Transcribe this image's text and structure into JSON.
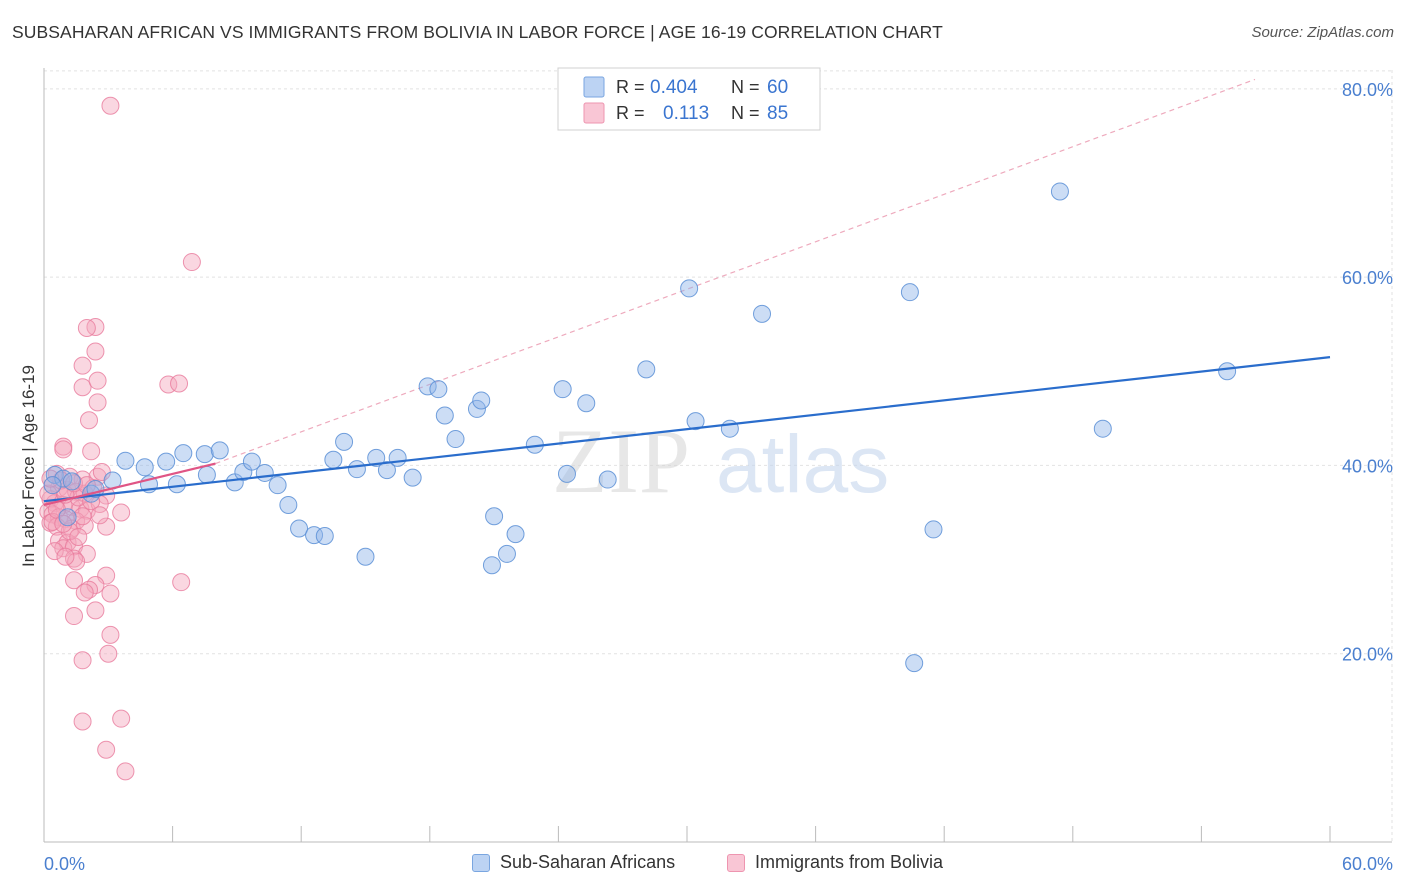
{
  "title": "SUBSAHARAN AFRICAN VS IMMIGRANTS FROM BOLIVIA IN LABOR FORCE | AGE 16-19 CORRELATION CHART",
  "source": "Source: ZipAtlas.com",
  "watermark": {
    "zip": "ZIP",
    "atlas": "atlas"
  },
  "colors": {
    "blue": "#8fb4e8",
    "blue_stroke": "#5b8fd6",
    "blue_line": "#2a6dcc",
    "pink": "#f4a7bd",
    "pink_stroke": "#e87b9c",
    "pink_line": "#e05585",
    "axis_label": "#4a7fcf",
    "grid": "#e2e2e2"
  },
  "chart_data": {
    "type": "scatter",
    "title": "SUBSAHARAN AFRICAN VS IMMIGRANTS FROM BOLIVIA IN LABOR FORCE | AGE 16-19 CORRELATION CHART",
    "xlabel": "",
    "ylabel": "In Labor Force | Age 16-19",
    "xlim": [
      0,
      60
    ],
    "ylim": [
      0,
      82
    ],
    "x_tick_labels": [
      "0.0%",
      "60.0%"
    ],
    "y_ticks": [
      20,
      40,
      60,
      80
    ],
    "y_tick_labels": [
      "20.0%",
      "40.0%",
      "60.0%",
      "80.0%"
    ],
    "legend_stats": [
      {
        "r_label": "R =",
        "r_value": "0.404",
        "n_label": "N =",
        "n_value": "60"
      },
      {
        "r_label": "R =",
        "r_value": "0.113",
        "n_label": "N =",
        "n_value": "85"
      }
    ],
    "series": [
      {
        "name": "Sub-Saharan Africans",
        "color": "blue",
        "trend": {
          "x0": 0,
          "y0": 36.2,
          "x1": 60,
          "y1": 51.5
        },
        "points": [
          [
            0.5,
            39.0
          ],
          [
            0.9,
            38.6
          ],
          [
            1.1,
            34.5
          ],
          [
            2.2,
            37.0
          ],
          [
            2.4,
            37.5
          ],
          [
            3.8,
            40.5
          ],
          [
            4.7,
            39.8
          ],
          [
            4.9,
            38.0
          ],
          [
            5.7,
            40.4
          ],
          [
            6.5,
            41.3
          ],
          [
            7.5,
            41.2
          ],
          [
            7.6,
            39.0
          ],
          [
            8.2,
            41.6
          ],
          [
            8.9,
            38.2
          ],
          [
            9.3,
            39.3
          ],
          [
            9.7,
            40.4
          ],
          [
            10.3,
            39.2
          ],
          [
            10.9,
            37.9
          ],
          [
            11.4,
            35.8
          ],
          [
            11.9,
            33.3
          ],
          [
            12.6,
            32.6
          ],
          [
            13.1,
            32.5
          ],
          [
            13.5,
            40.6
          ],
          [
            14.0,
            42.5
          ],
          [
            14.6,
            39.6
          ],
          [
            15.0,
            30.3
          ],
          [
            15.5,
            40.8
          ],
          [
            16.0,
            39.5
          ],
          [
            16.5,
            40.8
          ],
          [
            17.2,
            38.7
          ],
          [
            17.9,
            48.4
          ],
          [
            18.4,
            48.1
          ],
          [
            18.7,
            45.3
          ],
          [
            19.2,
            42.8
          ],
          [
            20.2,
            46.0
          ],
          [
            20.4,
            46.9
          ],
          [
            21.0,
            34.6
          ],
          [
            20.9,
            29.4
          ],
          [
            21.6,
            30.6
          ],
          [
            22.0,
            32.7
          ],
          [
            22.9,
            42.2
          ],
          [
            24.2,
            48.1
          ],
          [
            24.4,
            39.1
          ],
          [
            25.3,
            46.6
          ],
          [
            26.3,
            38.5
          ],
          [
            28.1,
            50.2
          ],
          [
            30.1,
            58.8
          ],
          [
            30.4,
            44.7
          ],
          [
            32.0,
            43.9
          ],
          [
            33.5,
            56.1
          ],
          [
            40.4,
            58.4
          ],
          [
            40.6,
            19.0
          ],
          [
            41.5,
            33.2
          ],
          [
            47.4,
            69.1
          ],
          [
            49.4,
            43.9
          ],
          [
            55.2,
            50.0
          ],
          [
            0.4,
            37.9
          ],
          [
            1.3,
            38.3
          ],
          [
            3.2,
            38.4
          ],
          [
            6.2,
            38.0
          ]
        ]
      },
      {
        "name": "Immigrants from Bolivia",
        "color": "pink",
        "trend": {
          "x0": 0,
          "y0": 35.8,
          "x1": 8,
          "y1": 40.2,
          "ext_x1": 56.5,
          "ext_y1": 81
        },
        "points": [
          [
            3.1,
            78.2
          ],
          [
            6.9,
            61.6
          ],
          [
            2.4,
            54.7
          ],
          [
            2.0,
            54.6
          ],
          [
            2.4,
            52.1
          ],
          [
            1.8,
            50.6
          ],
          [
            1.8,
            48.3
          ],
          [
            2.5,
            49.0
          ],
          [
            5.8,
            48.6
          ],
          [
            6.3,
            48.7
          ],
          [
            2.5,
            46.7
          ],
          [
            2.1,
            44.8
          ],
          [
            0.9,
            42.0
          ],
          [
            0.9,
            41.7
          ],
          [
            2.2,
            41.5
          ],
          [
            0.6,
            39.1
          ],
          [
            1.2,
            38.8
          ],
          [
            1.8,
            38.5
          ],
          [
            2.5,
            38.8
          ],
          [
            2.7,
            39.3
          ],
          [
            0.4,
            37.9
          ],
          [
            0.7,
            37.6
          ],
          [
            1.1,
            37.4
          ],
          [
            1.5,
            37.2
          ],
          [
            1.9,
            37.0
          ],
          [
            2.3,
            37.6
          ],
          [
            2.9,
            36.8
          ],
          [
            0.3,
            36.4
          ],
          [
            0.5,
            36.0
          ],
          [
            0.9,
            35.8
          ],
          [
            1.3,
            35.6
          ],
          [
            1.7,
            35.4
          ],
          [
            2.0,
            35.2
          ],
          [
            2.6,
            35.9
          ],
          [
            0.2,
            35.1
          ],
          [
            0.4,
            34.8
          ],
          [
            0.7,
            34.5
          ],
          [
            1.0,
            34.3
          ],
          [
            1.5,
            34.1
          ],
          [
            0.3,
            33.9
          ],
          [
            0.6,
            33.5
          ],
          [
            1.3,
            33.3
          ],
          [
            1.9,
            33.6
          ],
          [
            2.9,
            33.5
          ],
          [
            3.6,
            35.0
          ],
          [
            0.7,
            32.0
          ],
          [
            1.1,
            31.8
          ],
          [
            0.9,
            31.2
          ],
          [
            1.4,
            31.4
          ],
          [
            0.5,
            30.9
          ],
          [
            2.0,
            30.6
          ],
          [
            1.4,
            30.1
          ],
          [
            1.5,
            29.8
          ],
          [
            2.9,
            28.3
          ],
          [
            1.4,
            27.8
          ],
          [
            2.4,
            27.3
          ],
          [
            2.1,
            26.8
          ],
          [
            1.9,
            26.5
          ],
          [
            3.1,
            26.4
          ],
          [
            6.4,
            27.6
          ],
          [
            2.4,
            24.6
          ],
          [
            1.4,
            24.0
          ],
          [
            3.1,
            22.0
          ],
          [
            3.0,
            20.0
          ],
          [
            1.8,
            19.3
          ],
          [
            3.6,
            13.1
          ],
          [
            1.8,
            12.8
          ],
          [
            2.9,
            9.8
          ],
          [
            3.8,
            7.5
          ],
          [
            0.2,
            37.0
          ],
          [
            0.8,
            38.4
          ],
          [
            1.6,
            36.6
          ],
          [
            2.2,
            36.2
          ],
          [
            0.4,
            34.0
          ],
          [
            1.2,
            33.0
          ],
          [
            2.6,
            34.7
          ],
          [
            0.6,
            35.3
          ],
          [
            1.0,
            36.9
          ],
          [
            1.8,
            34.6
          ],
          [
            0.3,
            38.6
          ],
          [
            1.4,
            38.1
          ],
          [
            2.0,
            37.9
          ],
          [
            0.9,
            33.8
          ],
          [
            1.6,
            32.4
          ],
          [
            1.0,
            30.3
          ]
        ]
      }
    ]
  },
  "legend_bottom": [
    {
      "label": "Sub-Saharan Africans",
      "color": "blue"
    },
    {
      "label": "Immigrants from Bolivia",
      "color": "pink"
    }
  ]
}
